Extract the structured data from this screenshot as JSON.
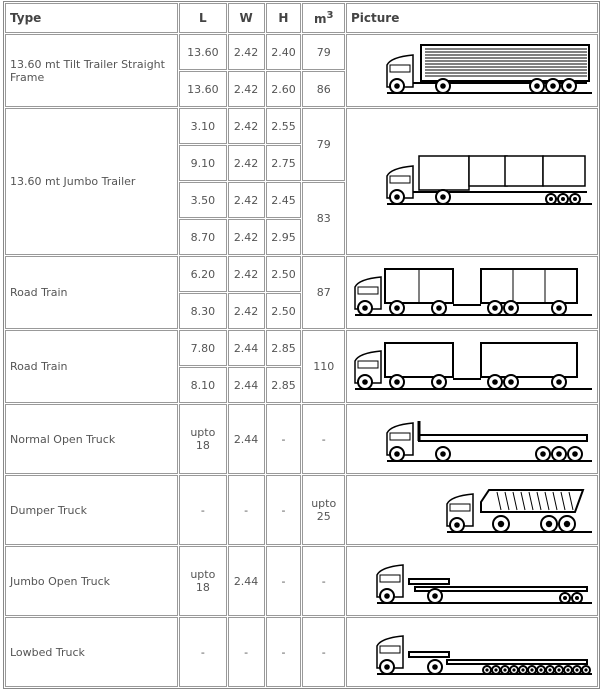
{
  "headers": {
    "type": "Type",
    "l": "L",
    "w": "W",
    "h": "H",
    "m3": "m",
    "m3_sup": "3",
    "picture": "Picture"
  },
  "rows": [
    {
      "type": "13.60 mt Tilt Trailer Straight Frame",
      "picture": "tilt-trailer-truck-icon",
      "sub": [
        [
          "13.60",
          "2.42",
          "2.40",
          "79"
        ],
        [
          "13.60",
          "2.42",
          "2.60",
          "86"
        ]
      ]
    },
    {
      "type": "13.60 mt Jumbo Trailer",
      "picture": "jumbo-trailer-truck-icon",
      "sub": [
        [
          "3.10",
          "2.42",
          "2.55",
          "79"
        ],
        [
          "9.10",
          "2.42",
          "2.75"
        ],
        [
          "3.50",
          "2.42",
          "2.45",
          "83"
        ],
        [
          "8.70",
          "2.42",
          "2.95"
        ]
      ]
    },
    {
      "type": "Road Train",
      "picture": "road-train-truck-icon",
      "sub": [
        [
          "6.20",
          "2.42",
          "2.50",
          "87"
        ],
        [
          "8.30",
          "2.42",
          "2.50"
        ]
      ]
    },
    {
      "type": "Road Train",
      "picture": "road-train-curtain-truck-icon",
      "sub": [
        [
          "7.80",
          "2.44",
          "2.85",
          "110"
        ],
        [
          "8.10",
          "2.44",
          "2.85"
        ]
      ]
    },
    {
      "type": "Normal Open Truck",
      "picture": "open-truck-icon",
      "vals": [
        "upto 18",
        "2.44",
        "-",
        "-"
      ]
    },
    {
      "type": "Dumper Truck",
      "picture": "dumper-truck-icon",
      "vals": [
        "-",
        "-",
        "-",
        "upto 25"
      ]
    },
    {
      "type": "Jumbo Open Truck",
      "picture": "jumbo-open-truck-icon",
      "vals": [
        "upto 18",
        "2.44",
        "-",
        "-"
      ]
    },
    {
      "type": "Lowbed Truck",
      "picture": "lowbed-truck-icon",
      "vals": [
        "-",
        "-",
        "-",
        "-"
      ]
    }
  ]
}
